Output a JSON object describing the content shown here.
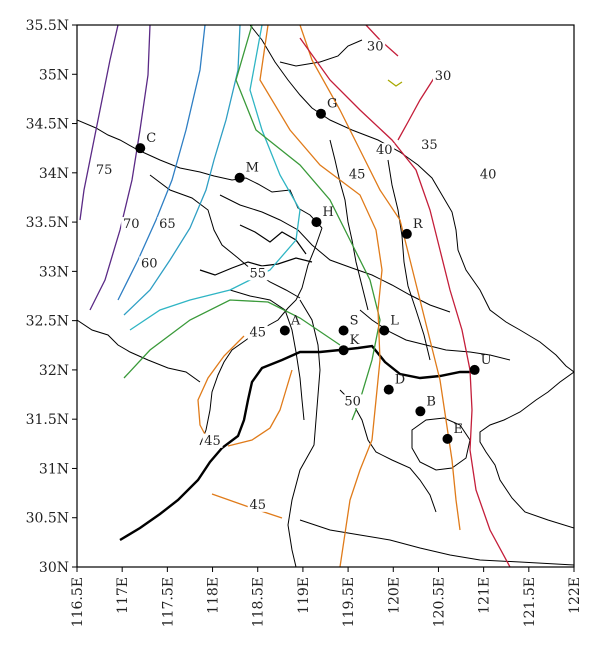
{
  "map": {
    "x_axis": {
      "ticks": [
        "116.5E",
        "117E",
        "117.5E",
        "118E",
        "118.5E",
        "119E",
        "119.5E",
        "120E",
        "120.5E",
        "121E",
        "121.5E",
        "122E"
      ],
      "range": [
        116.5,
        122
      ]
    },
    "y_axis": {
      "ticks": [
        "30N",
        "30.5N",
        "31N",
        "31.5N",
        "32N",
        "32.5N",
        "33N",
        "33.5N",
        "34N",
        "34.5N",
        "35N",
        "35.5N"
      ],
      "range": [
        30,
        35.5
      ]
    },
    "cities": [
      {
        "label": "C",
        "lon": 117.2,
        "lat": 34.25
      },
      {
        "label": "G",
        "lon": 119.2,
        "lat": 34.6
      },
      {
        "label": "M",
        "lon": 118.3,
        "lat": 33.95
      },
      {
        "label": "H",
        "lon": 119.15,
        "lat": 33.5
      },
      {
        "label": "R",
        "lon": 120.15,
        "lat": 33.38
      },
      {
        "label": "A",
        "lon": 118.8,
        "lat": 32.4
      },
      {
        "label": "S",
        "lon": 119.45,
        "lat": 32.4
      },
      {
        "label": "L",
        "lon": 119.9,
        "lat": 32.4
      },
      {
        "label": "K",
        "lon": 119.45,
        "lat": 32.2
      },
      {
        "label": "U",
        "lon": 120.9,
        "lat": 32.0
      },
      {
        "label": "D",
        "lon": 119.95,
        "lat": 31.8
      },
      {
        "label": "B",
        "lon": 120.3,
        "lat": 31.58
      },
      {
        "label": "E",
        "lon": 120.6,
        "lat": 31.3
      }
    ],
    "contours": [
      {
        "value": "75",
        "color": "#5b2a86",
        "lon": 116.8,
        "lat": 34.0
      },
      {
        "value": "70",
        "color": "#5b2a86",
        "lon": 117.1,
        "lat": 33.45
      },
      {
        "value": "65",
        "color": "#2f7fc4",
        "lon": 117.5,
        "lat": 33.45
      },
      {
        "value": "60",
        "color": "#2f9fc4",
        "lon": 117.3,
        "lat": 33.05
      },
      {
        "value": "55",
        "color": "#3a9a3a",
        "lon": 118.5,
        "lat": 32.95
      },
      {
        "value": "45",
        "color": "#3a9a3a",
        "lon": 118.5,
        "lat": 32.35
      },
      {
        "value": "50",
        "color": "#3a9a3a",
        "lon": 119.55,
        "lat": 31.65
      },
      {
        "value": "45",
        "color": "#e07b1a",
        "lon": 118.0,
        "lat": 31.25
      },
      {
        "value": "45",
        "color": "#e07b1a",
        "lon": 118.5,
        "lat": 30.6
      },
      {
        "value": "45",
        "color": "#3a9a3a",
        "lon": 119.6,
        "lat": 33.95
      },
      {
        "value": "40",
        "color": "#e07b1a",
        "lon": 119.9,
        "lat": 34.2
      },
      {
        "value": "35",
        "color": "#c41e3a",
        "lon": 120.4,
        "lat": 34.25
      },
      {
        "value": "40",
        "color": "#c41e3a",
        "lon": 121.05,
        "lat": 33.95
      },
      {
        "value": "30",
        "color": "#c41e3a",
        "lon": 119.8,
        "lat": 35.25
      },
      {
        "value": "30",
        "color": "#a8a800",
        "lon": 120.55,
        "lat": 34.95
      }
    ]
  }
}
